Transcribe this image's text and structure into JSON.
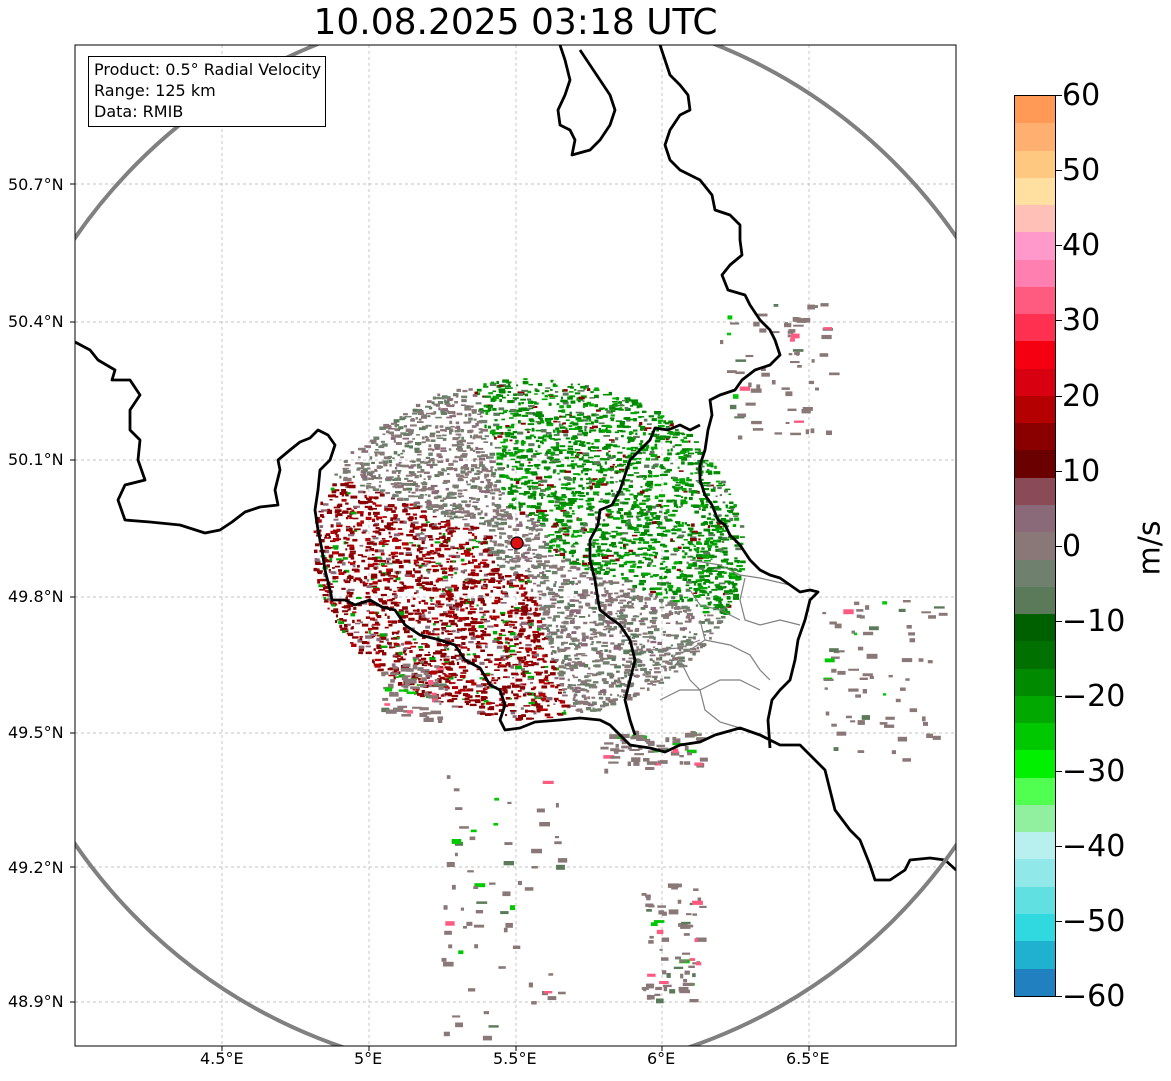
{
  "title": "10.08.2025 03:18 UTC",
  "info": {
    "product": "Product: 0.5° Radial Velocity",
    "range": "Range: 125 km",
    "data": "Data: RMIB"
  },
  "lat_labels": [
    "50.7°N",
    "50.4°N",
    "50.1°N",
    "49.8°N",
    "49.5°N",
    "49.2°N",
    "48.9°N"
  ],
  "lon_labels": [
    "4.5°E",
    "5°E",
    "5.5°E",
    "6°E",
    "6.5°E"
  ],
  "colorbar": {
    "unit": "m/s",
    "ticks": [
      "60",
      "50",
      "40",
      "30",
      "20",
      "10",
      "0",
      "−10",
      "−20",
      "−30",
      "−40",
      "−50",
      "−60"
    ],
    "colors_top_to_bottom": [
      "#ff9955",
      "#ffb070",
      "#ffc880",
      "#ffe0a0",
      "#ffc0b8",
      "#ff99cc",
      "#ff80b0",
      "#ff5a80",
      "#ff3050",
      "#f50010",
      "#d80010",
      "#b40000",
      "#8a0000",
      "#6a0000",
      "#8a4a58",
      "#8a6a78",
      "#8a7878",
      "#70806e",
      "#5a7a5a",
      "#006000",
      "#007000",
      "#008a00",
      "#00a800",
      "#00c800",
      "#00f000",
      "#50ff50",
      "#90f0a0",
      "#b8f0f0",
      "#90e8e8",
      "#60e0e0",
      "#30d8e0",
      "#20b0d0",
      "#2080c0"
    ]
  },
  "radar": {
    "site": "RMIB radar",
    "range_km": 125,
    "product": "0.5° Radial Velocity"
  },
  "colors": {
    "range_ring": "#808080",
    "border": "#000000",
    "admin_border": "#808080",
    "site_marker": "#dd1111"
  }
}
